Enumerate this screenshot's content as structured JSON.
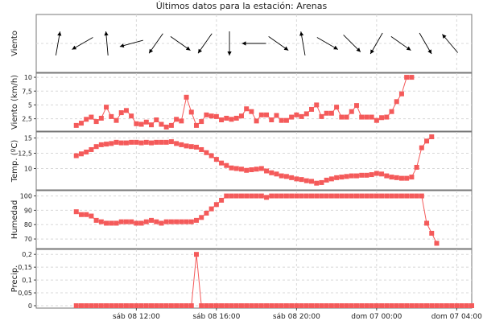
{
  "title": "Últimos datos para la estación: Arenas",
  "colors": {
    "series": "#f45a5a",
    "arrow": "#000000"
  },
  "x_axis": {
    "ticks": [
      {
        "t": 5.0,
        "label": "sáb 08 12:00"
      },
      {
        "t": 9.0,
        "label": "sáb 08 16:00"
      },
      {
        "t": 13.0,
        "label": "sáb 08 20:00"
      },
      {
        "t": 17.0,
        "label": "dom 07 00:00"
      },
      {
        "t": 21.0,
        "label": "dom 07 04:00"
      }
    ]
  },
  "chart_data": [
    {
      "type": "wind-direction",
      "ylabel": "Viento",
      "directions_deg": [
        10,
        240,
        355,
        255,
        215,
        125,
        215,
        180,
        270,
        125,
        350,
        120,
        135,
        210,
        125,
        150,
        320
      ]
    },
    {
      "type": "line",
      "ylabel": "Viento (km/h)",
      "ylim": [
        0.7,
        10.3
      ],
      "yticks": [
        {
          "v": 2.5,
          "label": "2,5"
        },
        {
          "v": 5.0,
          "label": "5"
        },
        {
          "v": 7.5,
          "label": "7,5"
        },
        {
          "v": 10.0,
          "label": "10"
        }
      ],
      "x_start": 2.0,
      "x_step": 0.25,
      "values": [
        1.3,
        1.7,
        2.4,
        2.8,
        2.0,
        2.6,
        4.6,
        2.9,
        2.2,
        3.6,
        4.0,
        3.0,
        1.6,
        1.5,
        1.9,
        1.4,
        2.3,
        1.5,
        1.0,
        1.3,
        2.4,
        2.1,
        6.4,
        3.7,
        1.3,
        2.0,
        3.2,
        3.0,
        2.9,
        2.3,
        2.6,
        2.4,
        2.6,
        3.0,
        4.3,
        3.8,
        2.1,
        3.2,
        3.2,
        2.3,
        3.1,
        2.2,
        2.2,
        2.8,
        3.2,
        2.9,
        3.4,
        4.2,
        5.0,
        2.9,
        3.5,
        3.5,
        4.6,
        2.8,
        2.8,
        3.8,
        4.9,
        2.8,
        2.8,
        2.8,
        2.2,
        2.7,
        2.8,
        3.8,
        5.6,
        7.0,
        10.0,
        10.0
      ]
    },
    {
      "type": "line",
      "ylabel": "Temp. (ºC)",
      "ylim": [
        6.9,
        15.6
      ],
      "yticks": [
        {
          "v": 10,
          "label": "10"
        },
        {
          "v": 12.5,
          "label": "12,5"
        },
        {
          "v": 15,
          "label": "15"
        }
      ],
      "x_start": 2.0,
      "x_step": 0.25,
      "values": [
        12.1,
        12.4,
        12.7,
        13.1,
        13.6,
        13.9,
        14.0,
        14.1,
        14.3,
        14.2,
        14.2,
        14.3,
        14.3,
        14.2,
        14.3,
        14.2,
        14.3,
        14.3,
        14.3,
        14.4,
        14.1,
        13.9,
        13.7,
        13.6,
        13.5,
        13.1,
        12.6,
        12.1,
        11.5,
        10.9,
        10.5,
        10.1,
        10.0,
        9.9,
        9.7,
        9.8,
        9.9,
        10.0,
        9.6,
        9.3,
        9.1,
        8.8,
        8.7,
        8.5,
        8.3,
        8.2,
        8.0,
        7.9,
        7.6,
        7.7,
        8.1,
        8.3,
        8.5,
        8.6,
        8.7,
        8.8,
        8.8,
        8.9,
        8.9,
        9.0,
        9.2,
        9.1,
        8.8,
        8.6,
        8.5,
        8.4,
        8.4,
        8.6,
        10.2,
        13.4,
        14.5,
        15.2
      ]
    },
    {
      "type": "line",
      "ylabel": "Humedad",
      "ylim": [
        65,
        102
      ],
      "yticks": [
        {
          "v": 70,
          "label": "70"
        },
        {
          "v": 80,
          "label": "80"
        },
        {
          "v": 90,
          "label": "90"
        },
        {
          "v": 100,
          "label": "100"
        }
      ],
      "x_start": 2.0,
      "x_step": 0.25,
      "values": [
        89,
        87,
        87,
        86,
        83,
        82,
        81,
        81,
        81,
        82,
        82,
        82,
        81,
        81,
        82,
        83,
        82,
        81,
        82,
        82,
        82,
        82,
        82,
        82,
        83,
        85,
        88,
        91,
        94,
        97,
        100,
        100,
        100,
        100,
        100,
        100,
        100,
        100,
        99,
        100,
        100,
        100,
        100,
        100,
        100,
        100,
        100,
        100,
        100,
        100,
        100,
        100,
        100,
        100,
        100,
        100,
        100,
        100,
        100,
        100,
        100,
        100,
        100,
        100,
        100,
        100,
        100,
        100,
        100,
        100,
        81,
        74,
        67
      ]
    },
    {
      "type": "line",
      "ylabel": "Precip.",
      "ylim": [
        0,
        0.21
      ],
      "yticks": [
        {
          "v": 0,
          "label": "0"
        },
        {
          "v": 0.05,
          "label": "0,05"
        },
        {
          "v": 0.1,
          "label": "0,1"
        },
        {
          "v": 0.15,
          "label": "0,15"
        },
        {
          "v": 0.2,
          "label": "0,2"
        }
      ],
      "x_start": 2.0,
      "x_step": 0.25,
      "values": [
        0,
        0,
        0,
        0,
        0,
        0,
        0,
        0,
        0,
        0,
        0,
        0,
        0,
        0,
        0,
        0,
        0,
        0,
        0,
        0,
        0,
        0,
        0,
        0,
        0.2,
        0,
        0,
        0,
        0,
        0,
        0,
        0,
        0,
        0,
        0,
        0,
        0,
        0,
        0,
        0,
        0,
        0,
        0,
        0,
        0,
        0,
        0,
        0,
        0,
        0,
        0,
        0,
        0,
        0,
        0,
        0,
        0,
        0,
        0,
        0,
        0,
        0,
        0,
        0,
        0,
        0,
        0,
        0,
        0,
        0,
        0,
        0,
        0,
        0,
        0,
        0,
        0,
        0,
        0,
        0
      ]
    }
  ]
}
